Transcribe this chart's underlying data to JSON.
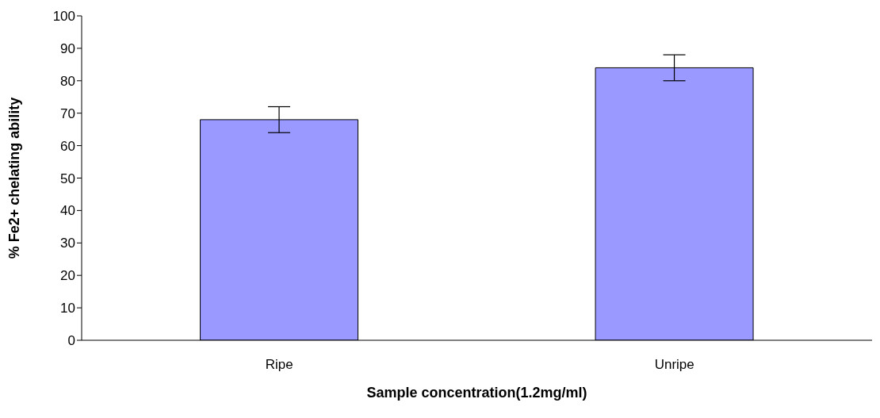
{
  "chart_data": {
    "type": "bar",
    "xlabel": "Sample concentration(1.2mg/ml)",
    "ylabel": "% Fe2+ chelating ability",
    "categories": [
      "Ripe",
      "Unripe"
    ],
    "values": [
      68,
      84
    ],
    "errors": [
      4,
      4
    ],
    "color": "#9999ff",
    "ylim": [
      0,
      100
    ],
    "yticks": [
      0,
      10,
      20,
      30,
      40,
      50,
      60,
      70,
      80,
      90,
      100
    ],
    "grid": false,
    "legend": false
  }
}
